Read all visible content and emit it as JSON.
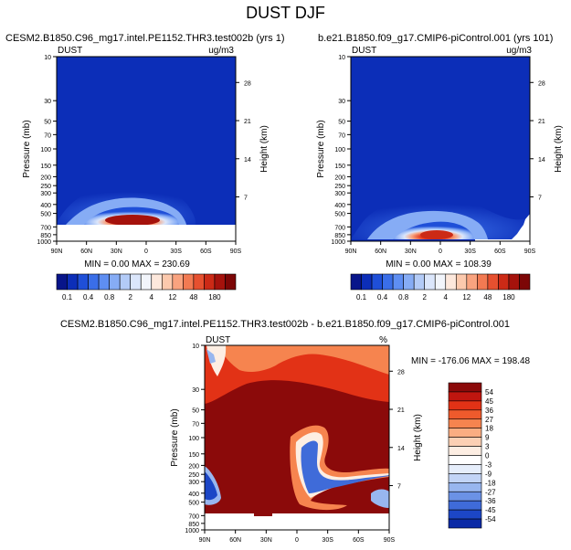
{
  "title": "DUST DJF",
  "colors": {
    "deep_blue": "#0a2aa6",
    "blue": "#1f4fd8",
    "light_blue": "#a8c8f0",
    "white": "#ffffff",
    "light_orange": "#fcd2b4",
    "orange": "#f07a4a",
    "red": "#d62a14",
    "dark_red": "#8b0a0a"
  },
  "panels": [
    {
      "case_title": "CESM2.B1850.C96_mg17.intel.PE1152.THR3.test002b (yrs 1)",
      "var_label": "DUST",
      "units": "ug/m3",
      "stats": "MIN =   0.00  MAX = 230.69"
    },
    {
      "case_title": "b.e21.B1850.f09_g17.CMIP6-piControl.001 (yrs 101)",
      "var_label": "DUST",
      "units": "ug/m3",
      "stats": "MIN =   0.00  MAX = 108.39"
    },
    {
      "case_title": "CESM2.B1850.C96_mg17.intel.PE1152.THR3.test002b - b.e21.B1850.f09_g17.CMIP6-piControl.001",
      "var_label": "DUST",
      "units": "%",
      "stats": "MIN = -176.06  MAX = 198.48"
    }
  ],
  "axes": {
    "ylabel": "Pressure (mb)",
    "y2label": "Height (km)",
    "pressure_ticks": [
      "10",
      "30",
      "50",
      "70",
      "100",
      "150",
      "200",
      "250",
      "300",
      "400",
      "500",
      "700",
      "850",
      "1000"
    ],
    "pressure_values": [
      10,
      30,
      50,
      70,
      100,
      150,
      200,
      250,
      300,
      400,
      500,
      700,
      850,
      1000
    ],
    "height_ticks": [
      "28",
      "21",
      "14",
      "7"
    ],
    "height_values": [
      28,
      21,
      14,
      7
    ],
    "x_ticks": [
      "90N",
      "60N",
      "30N",
      "0",
      "30S",
      "60S",
      "90S"
    ]
  },
  "chart_data": [
    {
      "type": "heatmap",
      "title": "CESM2.B1850.C96_mg17.intel.PE1152.THR3.test002b (yrs 1)",
      "variable": "DUST",
      "units": "ug/m3",
      "xlabel": "",
      "ylabel": "Pressure (mb)",
      "y2label": "Height (km)",
      "x_range": [
        "90N",
        "90S"
      ],
      "ylim": [
        1000,
        10
      ],
      "min": 0.0,
      "max": 230.69,
      "colorbar_levels": [
        "0.1",
        "0.4",
        "0.8",
        "2",
        "4",
        "12",
        "48",
        "180"
      ]
    },
    {
      "type": "heatmap",
      "title": "b.e21.B1850.f09_g17.CMIP6-piControl.001 (yrs 101)",
      "variable": "DUST",
      "units": "ug/m3",
      "xlabel": "",
      "ylabel": "Pressure (mb)",
      "y2label": "Height (km)",
      "x_range": [
        "90N",
        "90S"
      ],
      "ylim": [
        1000,
        10
      ],
      "min": 0.0,
      "max": 108.39,
      "colorbar_levels": [
        "0.1",
        "0.4",
        "0.8",
        "2",
        "4",
        "12",
        "48",
        "180"
      ]
    },
    {
      "type": "heatmap",
      "title": "CESM2.B1850.C96_mg17.intel.PE1152.THR3.test002b - b.e21.B1850.f09_g17.CMIP6-piControl.001",
      "variable": "DUST",
      "units": "%",
      "xlabel": "",
      "ylabel": "Pressure (mb)",
      "y2label": "Height (km)",
      "x_range": [
        "90N",
        "90S"
      ],
      "ylim": [
        1000,
        10
      ],
      "min": -176.06,
      "max": 198.48,
      "colorbar_levels": [
        "54",
        "45",
        "36",
        "27",
        "18",
        "9",
        "3",
        "0",
        "-3",
        "-9",
        "-18",
        "-27",
        "-36",
        "-45",
        "-54"
      ]
    }
  ],
  "colorbar_top": {
    "labels": [
      "0.1",
      "0.4",
      "0.8",
      "2",
      "4",
      "12",
      "48",
      "180"
    ],
    "colors": [
      "#08158a",
      "#0c2eb8",
      "#1f4fd8",
      "#3a6ee8",
      "#5e8ef2",
      "#86acf5",
      "#b3cbf7",
      "#dbe6fb",
      "#f2f5fb",
      "#fde8dc",
      "#fcc9ad",
      "#f9a37f",
      "#f27a52",
      "#e6502f",
      "#cc2a16",
      "#a5120c",
      "#7c0606"
    ]
  },
  "colorbar_diff": {
    "labels": [
      "54",
      "45",
      "36",
      "27",
      "18",
      "9",
      "3",
      "0",
      "-3",
      "-9",
      "-18",
      "-27",
      "-36",
      "-45",
      "-54"
    ],
    "colors": [
      "#8b0a0a",
      "#c0160f",
      "#e23216",
      "#ef5a2c",
      "#f6844f",
      "#faad82",
      "#fcd0b4",
      "#fdeee3",
      "#ffffff",
      "#e6eefb",
      "#c2d4f6",
      "#98b6ef",
      "#6b92e6",
      "#3f6bd9",
      "#1c46c6",
      "#0a2aa6"
    ]
  }
}
